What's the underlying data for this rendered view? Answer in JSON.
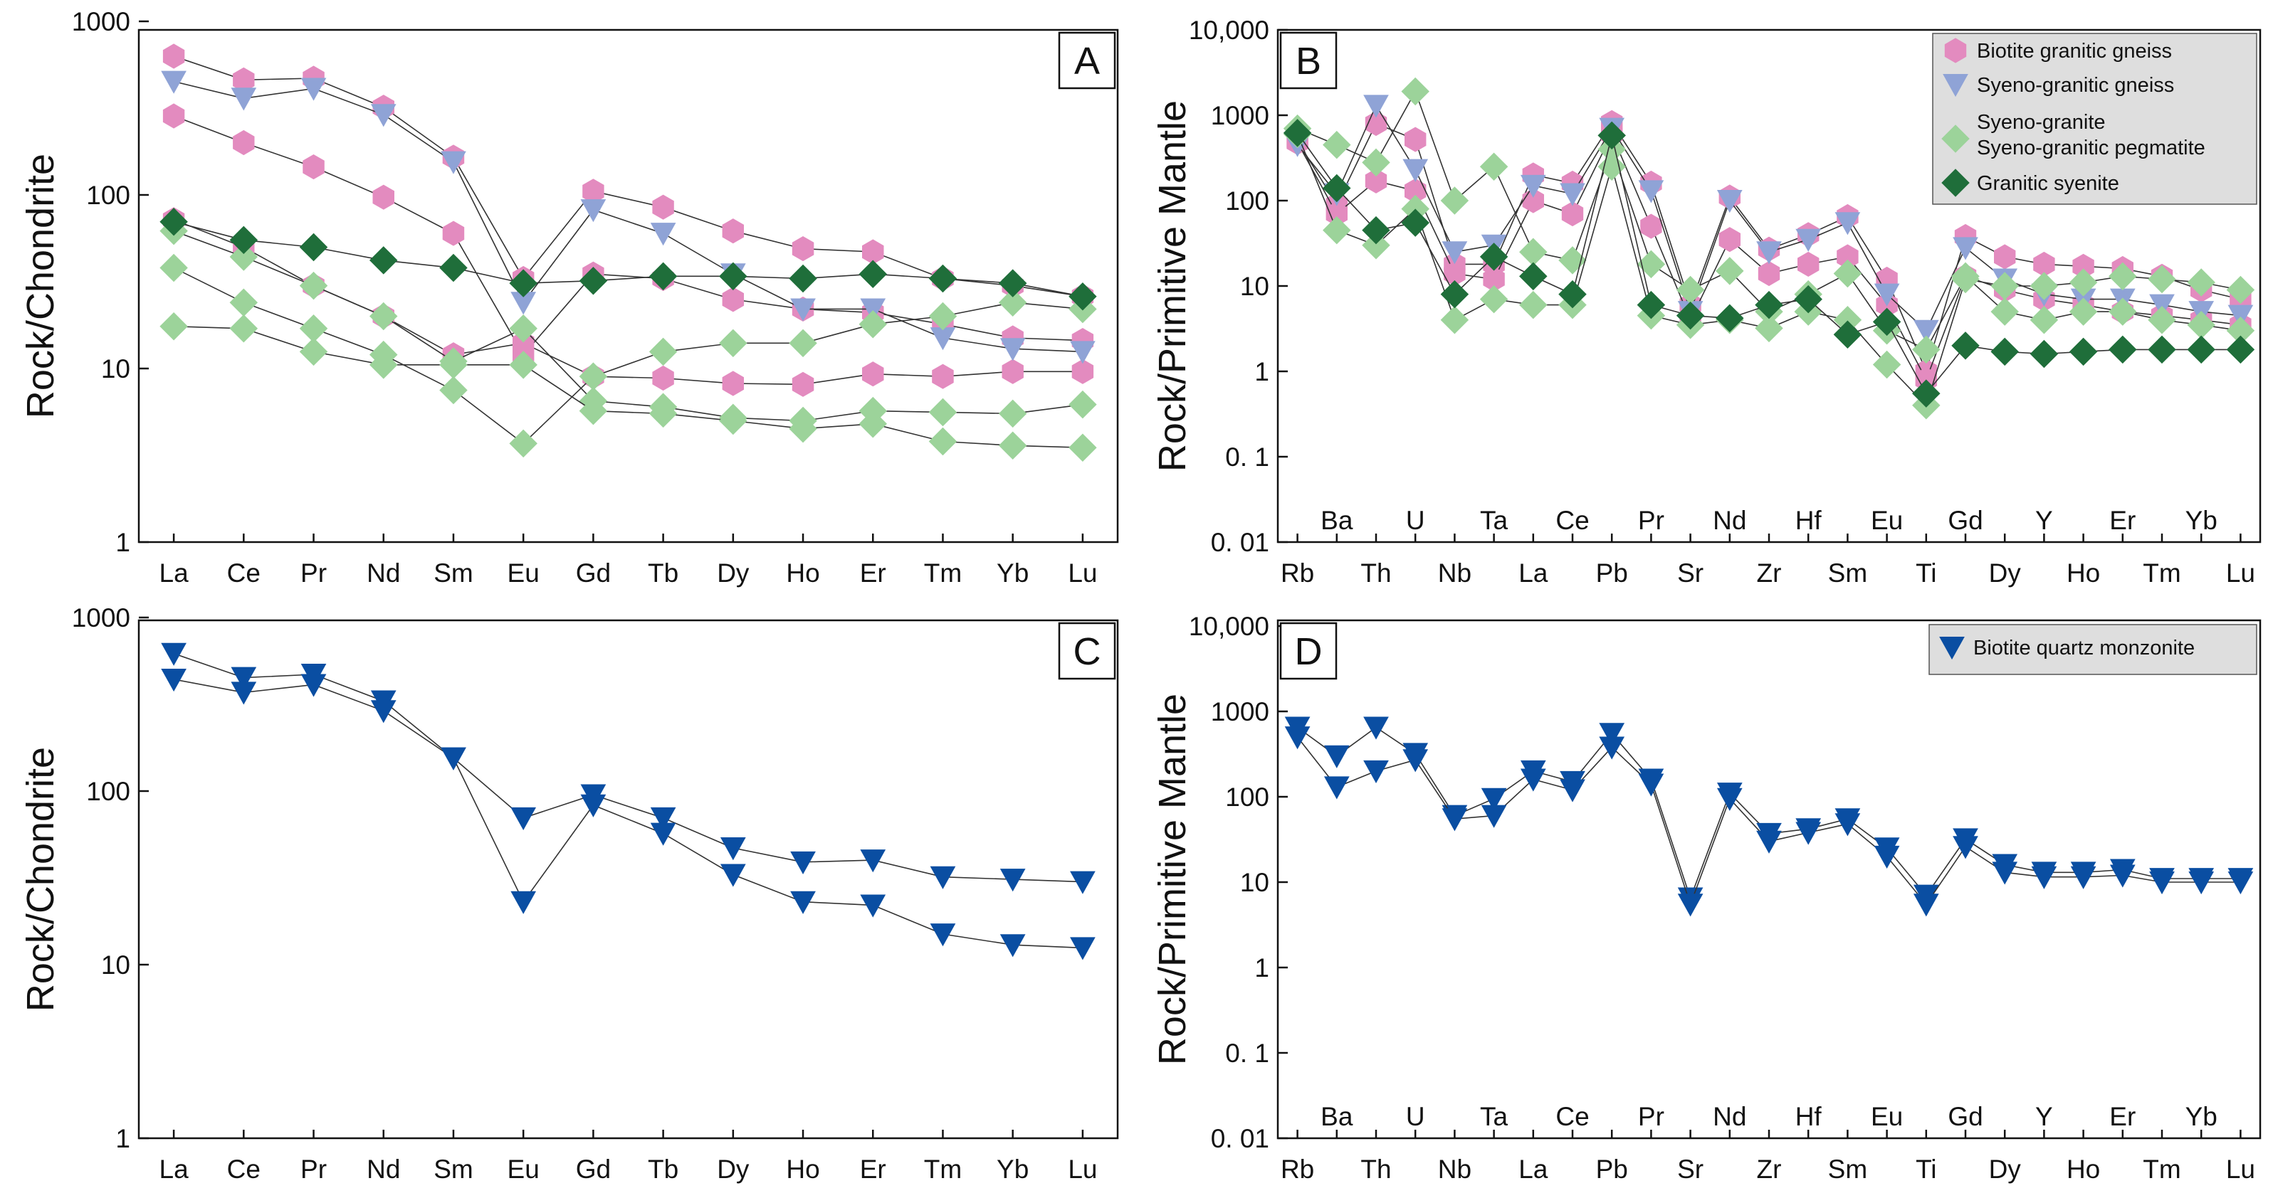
{
  "figure": {
    "colors": {
      "biotite_gneiss": "#E38BBF",
      "syeno_gneiss": "#8FA3D6",
      "syeno_granite": "#9CD39A",
      "granitic_syenite": "#1F6E3A",
      "monzonite": "#0A4EA2",
      "legend_bg": "#DEDEDE"
    }
  },
  "chart_data": [
    {
      "panel": "A",
      "type": "line",
      "scale": "log",
      "ylabel": "Rock/Chondrite",
      "ylim": [
        1,
        1000
      ],
      "yticks": [
        "1",
        "10",
        "100",
        "1000"
      ],
      "categories": [
        "La",
        "Ce",
        "Pr",
        "Nd",
        "Sm",
        "Eu",
        "Gd",
        "Tb",
        "Dy",
        "Ho",
        "Er",
        "Tm",
        "Yb",
        "Lu"
      ],
      "series": [
        {
          "name": "Biotite granitic gneiss",
          "marker": "hexagon",
          "color": "#E38BBF",
          "values": [
            630,
            460,
            470,
            320,
            165,
            33,
            105,
            85,
            62,
            49,
            47,
            33,
            30,
            26
          ]
        },
        {
          "name": "Biotite granitic gneiss",
          "marker": "hexagon",
          "color": "#E38BBF",
          "values": [
            285,
            200,
            145,
            97,
            60,
            12,
            35,
            33,
            25,
            22,
            21,
            18,
            15,
            14.5
          ]
        },
        {
          "name": "Biotite granitic gneiss",
          "marker": "hexagon",
          "color": "#E38BBF",
          "values": [
            72,
            50,
            30,
            20,
            12,
            14,
            9,
            8.8,
            8.2,
            8.1,
            9.3,
            9.0,
            9.6,
            9.6
          ]
        },
        {
          "name": "Syeno-granitic gneiss",
          "marker": "triangle",
          "color": "#8FA3D6",
          "values": [
            450,
            360,
            410,
            290,
            155,
            24,
            82,
            60,
            35,
            22,
            22,
            15,
            13,
            12.5
          ]
        },
        {
          "name": "Syeno-granite Syeno-granitic pegmatite",
          "marker": "diamond",
          "color": "#9CD39A",
          "values": [
            62,
            44,
            30,
            20,
            11,
            17,
            6.5,
            6,
            5.2,
            5,
            5.7,
            5.6,
            5.5,
            6.2
          ]
        },
        {
          "name": "Syeno-granite Syeno-granitic pegmatite",
          "marker": "diamond",
          "color": "#9CD39A",
          "values": [
            38,
            24,
            17,
            12,
            7.5,
            3.7,
            9,
            12.5,
            14,
            14,
            18,
            20,
            24,
            22
          ]
        },
        {
          "name": "Syeno-granite Syeno-granitic pegmatite",
          "marker": "diamond",
          "color": "#9CD39A",
          "values": [
            17.5,
            17,
            12.5,
            10.5,
            10.5,
            10.5,
            5.7,
            5.5,
            5.0,
            4.5,
            4.8,
            3.8,
            3.6,
            3.5
          ]
        },
        {
          "name": "Granitic syenite",
          "marker": "diamond",
          "color": "#1F6E3A",
          "values": [
            70,
            55,
            50,
            42,
            38,
            31,
            32,
            34,
            34,
            33,
            35,
            33,
            31,
            26
          ]
        }
      ]
    },
    {
      "panel": "B",
      "type": "line",
      "scale": "log",
      "ylabel": "Rock/Primitive Mantle",
      "ylim": [
        0.01,
        10000
      ],
      "yticks": [
        "0. 01",
        "0. 1",
        "1",
        "10",
        "100",
        "1000",
        "10,000"
      ],
      "categories": [
        "Rb",
        "Ba",
        "Th",
        "U",
        "Nb",
        "Ta",
        "La",
        "Ce",
        "Pb",
        "Pr",
        "Sr",
        "Nd",
        "Zr",
        "Hf",
        "Sm",
        "Eu",
        "Ti",
        "Gd",
        "Dy",
        "Y",
        "Ho",
        "Er",
        "Tm",
        "Yb",
        "Lu"
      ],
      "series": [
        {
          "name": "Biotite granitic gneiss",
          "marker": "hexagon",
          "color": "#E38BBF",
          "values": [
            500,
            90,
            800,
            520,
            18,
            18,
            200,
            160,
            820,
            160,
            6,
            110,
            27,
            40,
            65,
            12,
            1.0,
            38,
            22,
            18,
            17,
            16,
            13,
            9,
            7
          ]
        },
        {
          "name": "Biotite granitic gneiss",
          "marker": "hexagon",
          "color": "#E38BBF",
          "values": [
            480,
            70,
            170,
            130,
            14,
            12,
            100,
            70,
            600,
            50,
            4,
            35,
            14,
            18,
            22,
            6,
            0.8,
            13,
            9,
            7,
            6,
            5,
            4.5,
            4,
            3.5
          ]
        },
        {
          "name": "Syeno-granitic gneiss",
          "marker": "triangle",
          "color": "#8FA3D6",
          "values": [
            450,
            120,
            1300,
            230,
            25,
            30,
            150,
            120,
            700,
            130,
            5,
            100,
            25,
            35,
            55,
            8,
            3,
            28,
            12,
            8,
            7,
            7,
            6,
            5,
            4.5
          ]
        },
        {
          "name": "Syeno-granite Syeno-granitic pegmatite",
          "marker": "diamond",
          "color": "#9CD39A",
          "values": [
            700,
            450,
            280,
            1900,
            100,
            250,
            25,
            20,
            400,
            18,
            9,
            15,
            5,
            8,
            14,
            3,
            1.8,
            13,
            5,
            4,
            5,
            5,
            4,
            3.5,
            3
          ]
        },
        {
          "name": "Syeno-granite Syeno-granitic pegmatite",
          "marker": "diamond",
          "color": "#9CD39A",
          "values": [
            600,
            45,
            30,
            80,
            4,
            7,
            6,
            6,
            250,
            4.5,
            3.5,
            4,
            3.2,
            5,
            4,
            1.2,
            0.4,
            12,
            10,
            10,
            11,
            13,
            12,
            11,
            9
          ]
        },
        {
          "name": "Granitic syenite",
          "marker": "diamond",
          "color": "#1F6E3A",
          "values": [
            620,
            140,
            45,
            55,
            8,
            22,
            13,
            8,
            580,
            6,
            4.5,
            4.2,
            6,
            7,
            2.7,
            3.8,
            0.55,
            2.0,
            1.7,
            1.6,
            1.7,
            1.8,
            1.8,
            1.8,
            1.8
          ]
        }
      ],
      "legend": [
        "Biotite granitic gneiss",
        "Syeno-granitic gneiss",
        "Syeno-granite",
        "Syeno-granitic pegmatite",
        "Granitic syenite"
      ]
    },
    {
      "panel": "C",
      "type": "line",
      "scale": "log",
      "ylabel": "Rock/Chondrite",
      "ylim": [
        1,
        1000
      ],
      "yticks": [
        "1",
        "10",
        "100",
        "1000"
      ],
      "categories": [
        "La",
        "Ce",
        "Pr",
        "Nd",
        "Sm",
        "Eu",
        "Gd",
        "Tb",
        "Dy",
        "Ho",
        "Er",
        "Tm",
        "Yb",
        "Lu"
      ],
      "series": [
        {
          "name": "Biotite quartz monzonite",
          "marker": "triangle",
          "color": "#0A4EA2",
          "values": [
            620,
            450,
            470,
            330,
            155,
            70,
            95,
            70,
            47,
            39,
            40,
            32,
            31,
            30
          ]
        },
        {
          "name": "Biotite quartz monzonite",
          "marker": "triangle",
          "color": "#0A4EA2",
          "values": [
            440,
            370,
            410,
            290,
            155,
            23,
            83,
            57,
            33,
            23,
            22,
            15,
            13,
            12.5
          ]
        }
      ]
    },
    {
      "panel": "D",
      "type": "line",
      "scale": "log",
      "ylabel": "Rock/Primitive Mantle",
      "ylim": [
        0.01,
        10000
      ],
      "yticks": [
        "0. 01",
        "0. 1",
        "1",
        "10",
        "100",
        "1000",
        "10,000"
      ],
      "categories": [
        "Rb",
        "Ba",
        "Th",
        "U",
        "Nb",
        "Ta",
        "La",
        "Ce",
        "Pb",
        "Pr",
        "Sr",
        "Nd",
        "Zr",
        "Hf",
        "Sm",
        "Eu",
        "Ti",
        "Gd",
        "Dy",
        "Y",
        "Ho",
        "Er",
        "Tm",
        "Yb",
        "Lu"
      ],
      "series": [
        {
          "name": "Biotite quartz monzonite",
          "marker": "triangle",
          "color": "#0A4EA2",
          "values": [
            650,
            300,
            650,
            320,
            60,
            95,
            200,
            150,
            550,
            160,
            6.5,
            110,
            37,
            42,
            55,
            25,
            7,
            32,
            16,
            13,
            13,
            14,
            11,
            11,
            11
          ]
        },
        {
          "name": "Biotite quartz monzonite",
          "marker": "triangle",
          "color": "#0A4EA2",
          "values": [
            500,
            130,
            200,
            270,
            55,
            60,
            160,
            120,
            380,
            140,
            5.5,
            95,
            30,
            38,
            48,
            20,
            5.5,
            26,
            13,
            11.5,
            11.5,
            12,
            10,
            10,
            10
          ]
        }
      ],
      "legend": [
        "Biotite quartz monzonite"
      ]
    }
  ]
}
